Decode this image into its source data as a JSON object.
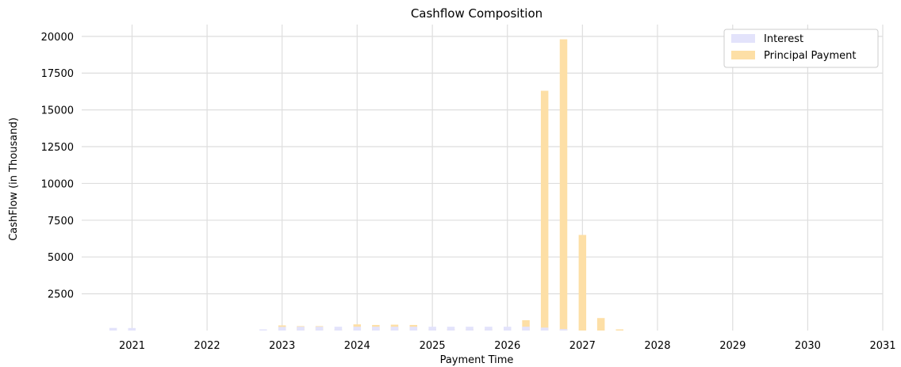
{
  "chart_data": {
    "type": "bar",
    "title": "Cashflow Composition",
    "xlabel": "Payment Time",
    "ylabel": "CashFlow (in Thousand)",
    "ylim": [
      0,
      20800
    ],
    "xlim": [
      "2020-05-01",
      "2031-01-01"
    ],
    "yticks": [
      2500,
      5000,
      7500,
      10000,
      12500,
      15000,
      17500,
      20000
    ],
    "xticks": [
      "2021",
      "2022",
      "2023",
      "2024",
      "2025",
      "2026",
      "2027",
      "2028",
      "2029",
      "2030",
      "2031"
    ],
    "grid": true,
    "legend_position": "top-right",
    "series": [
      {
        "name": "Interest",
        "color": "#e3e3fb",
        "points": [
          {
            "date": "2020-10-01",
            "value": 180
          },
          {
            "date": "2020-12-31",
            "value": 170
          },
          {
            "date": "2022-10-01",
            "value": 80
          },
          {
            "date": "2023-01-01",
            "value": 250
          },
          {
            "date": "2023-04-01",
            "value": 260
          },
          {
            "date": "2023-07-01",
            "value": 260
          },
          {
            "date": "2023-10-01",
            "value": 260
          },
          {
            "date": "2024-01-01",
            "value": 260
          },
          {
            "date": "2024-04-01",
            "value": 260
          },
          {
            "date": "2024-07-01",
            "value": 260
          },
          {
            "date": "2024-10-01",
            "value": 260
          },
          {
            "date": "2025-01-01",
            "value": 260
          },
          {
            "date": "2025-04-01",
            "value": 260
          },
          {
            "date": "2025-07-01",
            "value": 260
          },
          {
            "date": "2025-10-01",
            "value": 260
          },
          {
            "date": "2026-01-01",
            "value": 260
          },
          {
            "date": "2026-04-01",
            "value": 260
          },
          {
            "date": "2026-07-01",
            "value": 200
          },
          {
            "date": "2026-10-01",
            "value": 100
          }
        ]
      },
      {
        "name": "Principal Payment",
        "color": "#fddfa6",
        "points": [
          {
            "date": "2023-01-01",
            "value": 350
          },
          {
            "date": "2023-04-01",
            "value": 300
          },
          {
            "date": "2023-07-01",
            "value": 300
          },
          {
            "date": "2023-10-01",
            "value": 80
          },
          {
            "date": "2024-01-01",
            "value": 420
          },
          {
            "date": "2024-04-01",
            "value": 380
          },
          {
            "date": "2024-07-01",
            "value": 400
          },
          {
            "date": "2024-10-01",
            "value": 380
          },
          {
            "date": "2025-01-01",
            "value": 100
          },
          {
            "date": "2025-04-01",
            "value": 100
          },
          {
            "date": "2025-07-01",
            "value": 100
          },
          {
            "date": "2025-10-01",
            "value": 100
          },
          {
            "date": "2026-01-01",
            "value": 150
          },
          {
            "date": "2026-04-01",
            "value": 700
          },
          {
            "date": "2026-07-01",
            "value": 16300
          },
          {
            "date": "2026-10-01",
            "value": 19800
          },
          {
            "date": "2027-01-01",
            "value": 6500
          },
          {
            "date": "2027-04-01",
            "value": 850
          },
          {
            "date": "2027-07-01",
            "value": 80
          }
        ]
      }
    ]
  }
}
